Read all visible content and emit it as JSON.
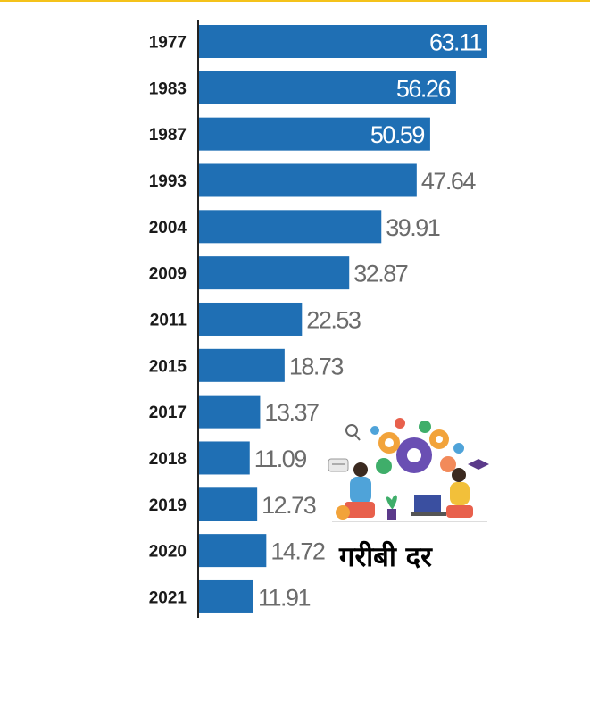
{
  "caption": "गरीबी दर",
  "colors": {
    "bar": "#1f6fb4",
    "accent_rule": "#f4c21a",
    "value_outside": "#6b6b6b"
  },
  "illustration": {
    "icon": "teamwork-gears-illustration"
  },
  "chart_data": {
    "type": "bar",
    "orientation": "horizontal",
    "title": "गरीबी दर",
    "categories": [
      "1977",
      "1983",
      "1987",
      "1993",
      "2004",
      "2009",
      "2011",
      "2015",
      "2017",
      "2018",
      "2019",
      "2020",
      "2021"
    ],
    "values": [
      63.11,
      56.26,
      50.59,
      47.64,
      39.91,
      32.87,
      22.53,
      18.73,
      13.37,
      11.09,
      12.73,
      14.72,
      11.91
    ],
    "value_labels": [
      "63.11",
      "56.26",
      "50.59",
      "47.64",
      "39.91",
      "32.87",
      "22.53",
      "18.73",
      "13.37",
      "11.09",
      "12.73",
      "14.72",
      "11.91"
    ],
    "xlim": [
      0,
      63.11
    ],
    "grid": false,
    "legend": "none"
  }
}
